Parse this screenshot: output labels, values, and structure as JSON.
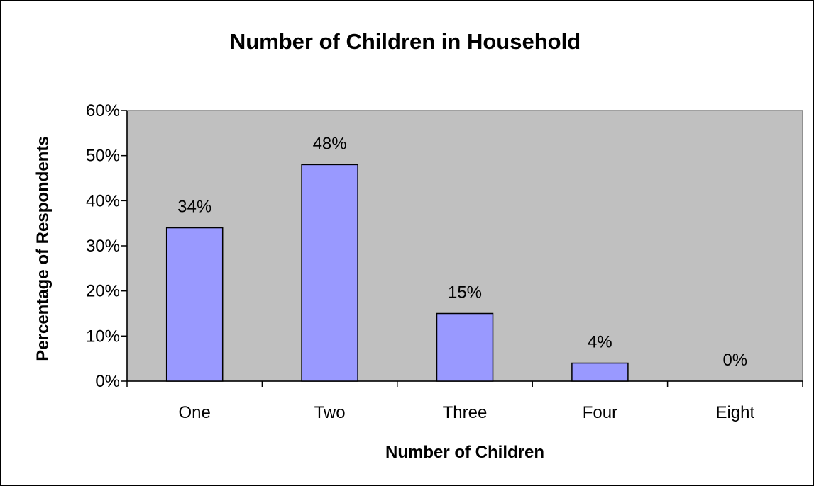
{
  "chart_data": {
    "type": "bar",
    "title": "Number of Children in Household",
    "xlabel": "Number of Children",
    "ylabel": "Percentage of Respondents",
    "categories": [
      "One",
      "Two",
      "Three",
      "Four",
      "Eight"
    ],
    "values": [
      34,
      48,
      15,
      4,
      0
    ],
    "data_labels": [
      "34%",
      "48%",
      "15%",
      "4%",
      "0%"
    ],
    "ylim": [
      0,
      60
    ],
    "y_ticks": [
      0,
      10,
      20,
      30,
      40,
      50,
      60
    ],
    "y_tick_labels": [
      "0%",
      "10%",
      "20%",
      "30%",
      "40%",
      "50%",
      "60%"
    ],
    "grid": false,
    "legend": "none",
    "colors": {
      "bar_fill": "#9999ff",
      "bar_stroke": "#000000",
      "plot_background": "#c0c0c0",
      "plot_border": "#808080"
    }
  }
}
